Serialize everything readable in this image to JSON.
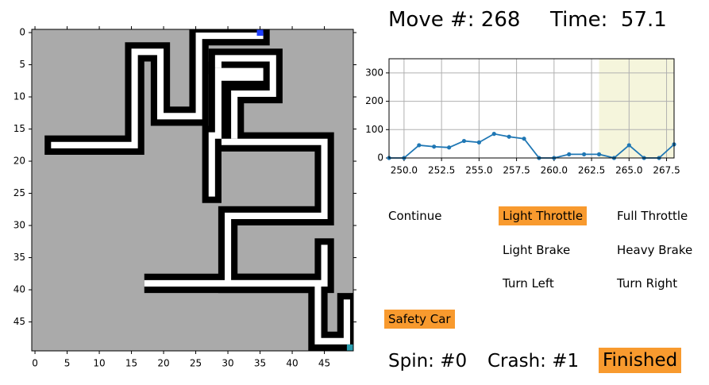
{
  "header": {
    "move": "Move #: 268",
    "time": "Time:  57.1"
  },
  "board": {
    "xticks": [
      0,
      5,
      10,
      15,
      20,
      25,
      30,
      35,
      40,
      45
    ],
    "yticks": [
      0,
      5,
      10,
      15,
      20,
      25,
      30,
      35,
      40,
      45
    ]
  },
  "chart_data": {
    "type": "line",
    "x": [
      249,
      250,
      251,
      252,
      253,
      254,
      255,
      256,
      257,
      258,
      259,
      260,
      261,
      262,
      263,
      264,
      265,
      266,
      267,
      268
    ],
    "values": [
      0,
      0,
      45,
      40,
      37,
      60,
      55,
      85,
      75,
      68,
      0,
      0,
      13,
      13,
      13,
      0,
      45,
      0,
      0,
      48
    ],
    "color": "#1f77b4",
    "shade_color": "#f5f5dc",
    "shaded_xlim": [
      263,
      268
    ],
    "xlim": [
      249,
      268
    ],
    "ylim": [
      0,
      350
    ],
    "xticks": [
      {
        "value": 250,
        "label": "250.0"
      },
      {
        "value": 252.5,
        "label": "252.5"
      },
      {
        "value": 255,
        "label": "255.0"
      },
      {
        "value": 257.5,
        "label": "257.5"
      },
      {
        "value": 260,
        "label": "260.0"
      },
      {
        "value": 262.5,
        "label": "262.5"
      },
      {
        "value": 265,
        "label": "265.0"
      },
      {
        "value": 267.5,
        "label": "267.5"
      }
    ],
    "yticks": [
      0,
      100,
      200,
      300
    ],
    "grid": true
  },
  "controls": [
    {
      "label": "Continue",
      "active": false
    },
    {
      "label": "Light Throttle",
      "active": true
    },
    {
      "label": "Full Throttle",
      "active": false
    },
    {
      "label": "Light Brake",
      "active": false
    },
    {
      "label": "Heavy Brake",
      "active": false
    },
    {
      "label": "Turn Left",
      "active": false
    },
    {
      "label": "Turn Right",
      "active": false
    },
    {
      "label": "Safety Car",
      "active": true
    }
  ],
  "status": {
    "spin": "Spin: #0",
    "crash": "Crash: #1",
    "state": "Finished",
    "state_active": true
  }
}
